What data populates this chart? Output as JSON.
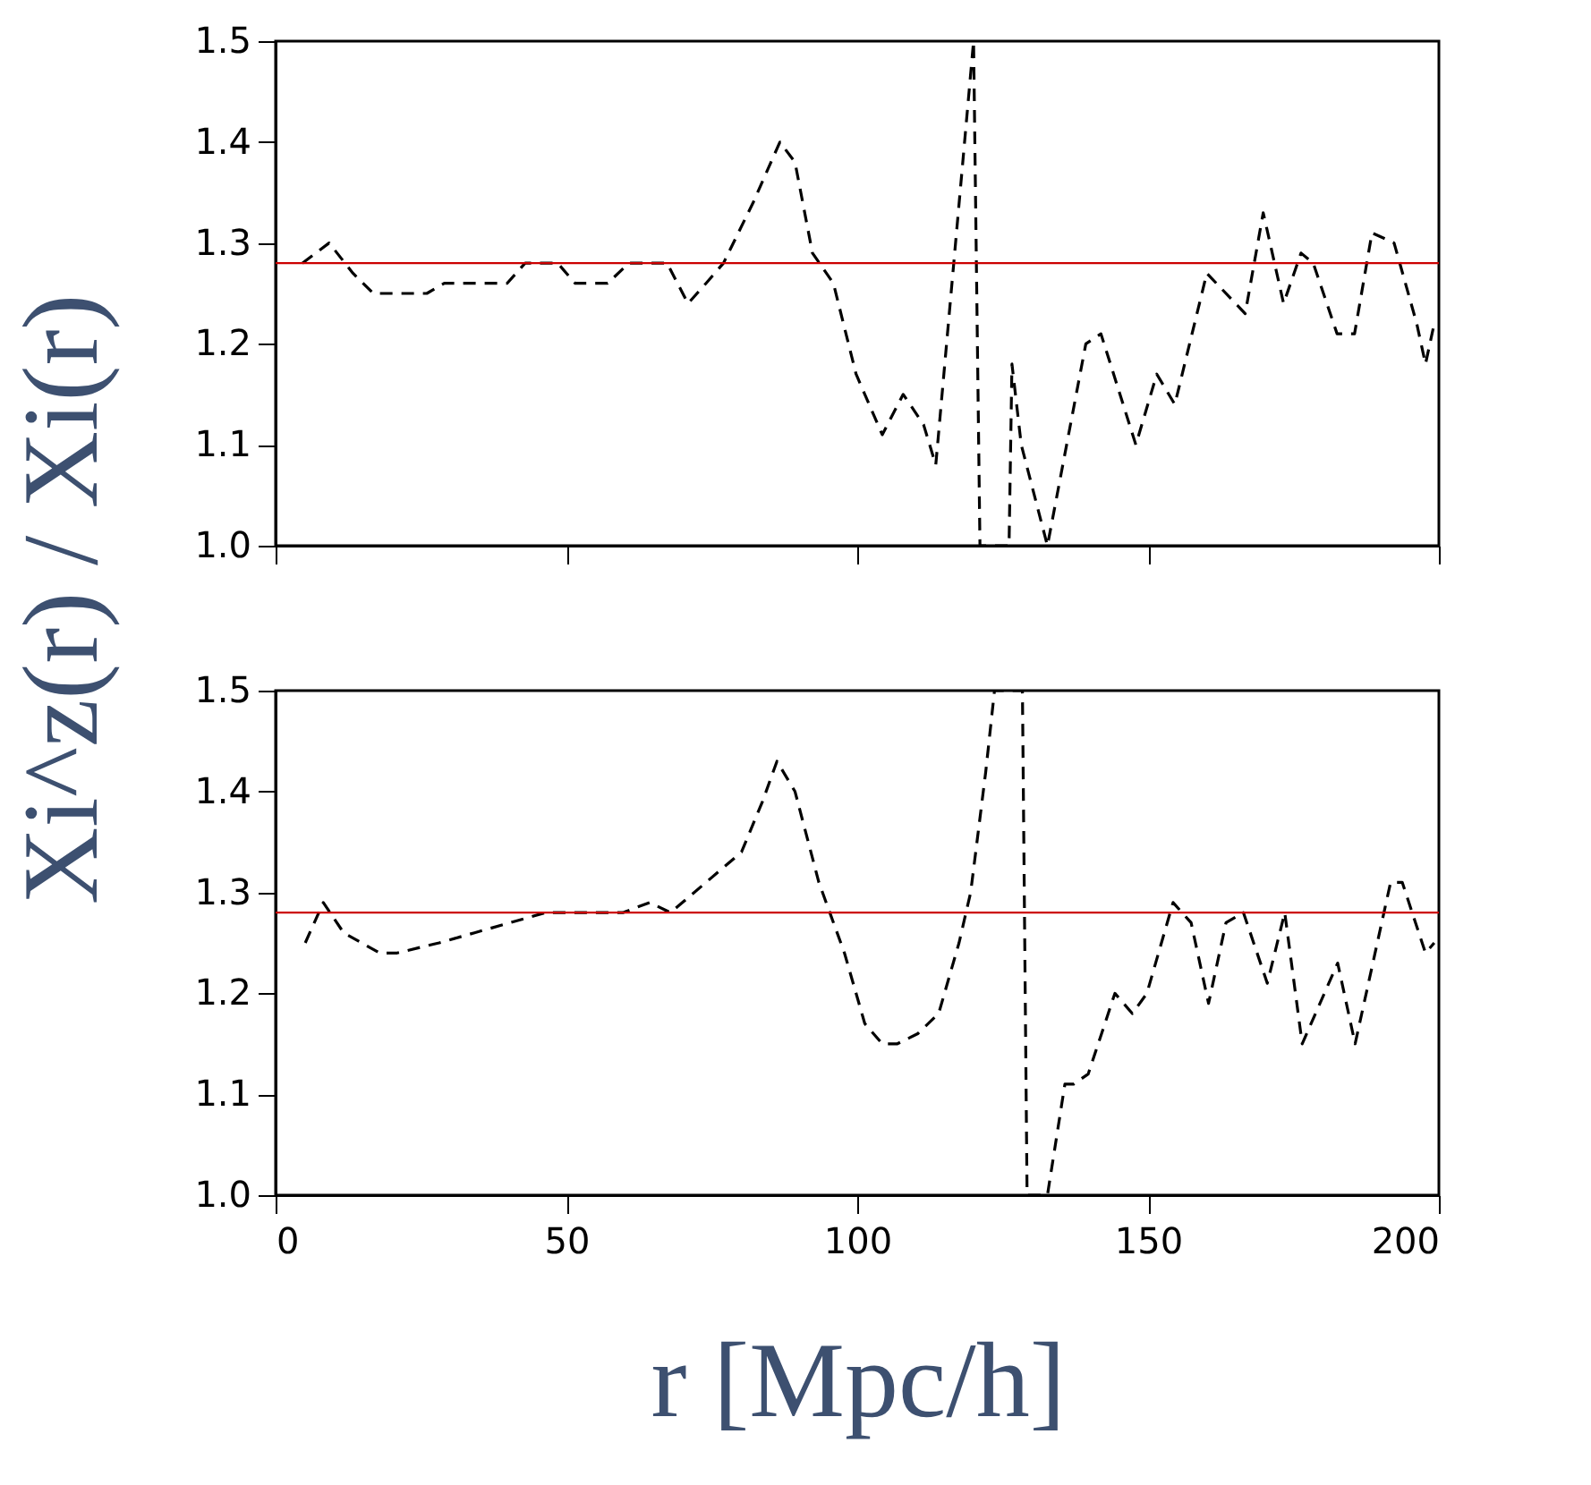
{
  "chart_data": [
    {
      "type": "line",
      "ylabel": "Xi^z(r) / Xi(r)",
      "xlim": [
        0,
        200
      ],
      "ylim": [
        1.0,
        1.5
      ],
      "xticks": [
        0,
        50,
        100,
        150,
        200
      ],
      "yticks": [
        {
          "value": 1,
          "label": "1.0"
        },
        1.1,
        1.2,
        1.3,
        1.4,
        1.5
      ],
      "tick_labels": "y",
      "grid": false,
      "line_style": "dashed",
      "marker": "none",
      "series": [
        {
          "color": "#000000",
          "x": [
            4.6,
            9.2,
            13.3,
            16.8,
            26,
            29,
            36.2,
            39.8,
            42.9,
            48.5,
            51.5,
            57.1,
            60.7,
            63.8,
            67.3,
            70.9,
            74,
            77,
            82.1,
            86.7,
            89.3,
            92.3,
            95.9,
            99.8,
            104.3,
            107.9,
            111.4,
            113.5,
            120.0,
            121.1,
            126.1,
            126.6,
            128.2,
            132.7,
            139.3,
            141.9,
            147.9,
            151.5,
            154.6,
            160.1,
            166.7,
            169.8,
            173.3,
            176.3,
            178.4,
            182.5,
            185.5,
            188.5,
            192.3,
            196.2,
            197.7,
            199.2
          ],
          "values": [
            1.28,
            1.3,
            1.27,
            1.25,
            1.25,
            1.26,
            1.26,
            1.26,
            1.28,
            1.28,
            1.26,
            1.26,
            1.28,
            1.28,
            1.28,
            1.24,
            1.26,
            1.28,
            1.34,
            1.4,
            1.38,
            1.29,
            1.26,
            1.17,
            1.11,
            1.15,
            1.12,
            1.08,
            1.5,
            1.0,
            1.0,
            1.18,
            1.1,
            1.0,
            1.2,
            1.21,
            1.1,
            1.17,
            1.14,
            1.27,
            1.23,
            1.33,
            1.24,
            1.29,
            1.28,
            1.21,
            1.21,
            1.31,
            1.3,
            1.22,
            1.18,
            1.22
          ]
        }
      ],
      "ref_lines": [
        {
          "axis": "y",
          "value": 1.28,
          "color": "#cc0000"
        }
      ]
    },
    {
      "type": "line",
      "xlabel": "r [Mpc/h]",
      "xlim": [
        0,
        200
      ],
      "ylim": [
        1.0,
        1.5
      ],
      "xticks": [
        0,
        50,
        100,
        150,
        200
      ],
      "yticks": [
        {
          "value": 1,
          "label": "1.0"
        },
        1.1,
        1.2,
        1.3,
        1.4,
        1.5
      ],
      "grid": false,
      "line_style": "dashed",
      "marker": "none",
      "series": [
        {
          "color": "#000000",
          "x": [
            5.1,
            8.2,
            11.7,
            17.9,
            20.9,
            28.1,
            34.2,
            40.3,
            46.4,
            53.6,
            59.7,
            64.3,
            67.9,
            74,
            80.1,
            83.7,
            86.2,
            89.3,
            93.4,
            97.8,
            101.3,
            104.3,
            106.9,
            110.4,
            114,
            117.5,
            119.5,
            122.1,
            123.6,
            128.4,
            129.2,
            132.7,
            135.7,
            137.2,
            139.7,
            144.3,
            147.3,
            149.8,
            154.3,
            157.4,
            160.4,
            163.4,
            166.4,
            170.5,
            173.5,
            176.5,
            182.6,
            185.6,
            191.7,
            193.7,
            197.7,
            199.2
          ],
          "values": [
            1.25,
            1.29,
            1.26,
            1.24,
            1.24,
            1.25,
            1.26,
            1.27,
            1.28,
            1.28,
            1.28,
            1.29,
            1.28,
            1.31,
            1.34,
            1.39,
            1.43,
            1.4,
            1.31,
            1.24,
            1.17,
            1.15,
            1.15,
            1.16,
            1.18,
            1.25,
            1.3,
            1.42,
            1.5,
            1.5,
            1.0,
            1.0,
            1.11,
            1.11,
            1.12,
            1.2,
            1.18,
            1.2,
            1.29,
            1.27,
            1.19,
            1.27,
            1.28,
            1.21,
            1.28,
            1.15,
            1.23,
            1.15,
            1.31,
            1.31,
            1.24,
            1.25
          ]
        }
      ],
      "ref_lines": [
        {
          "axis": "y",
          "value": 1.28,
          "color": "#cc0000"
        }
      ]
    }
  ]
}
